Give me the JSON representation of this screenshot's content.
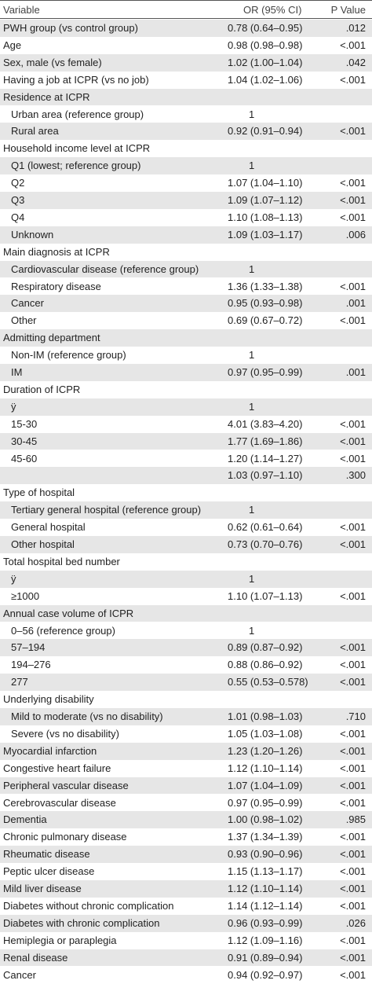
{
  "table": {
    "header": [
      "Variable",
      "OR (95% CI)",
      "P Value"
    ],
    "rows": [
      {
        "label": "PWH group (vs control group)",
        "or": "0.78 (0.64–0.95)",
        "p": ".012"
      },
      {
        "label": "Age",
        "or": "0.98 (0.98–0.98)",
        "p": "<.001"
      },
      {
        "label": "Sex, male (vs female)",
        "or": "1.02 (1.00–1.04)",
        "p": ".042"
      },
      {
        "label": "Having a job at ICPR (vs no job)",
        "or": "1.04 (1.02–1.06)",
        "p": "<.001"
      },
      {
        "label": "Residence at ICPR"
      },
      {
        "label": "Urban area (reference group)",
        "or": "1"
      },
      {
        "label": "Rural area",
        "or": "0.92 (0.91–0.94)",
        "p": "<.001"
      },
      {
        "label": "Household income level at ICPR"
      },
      {
        "label": "Q1 (lowest; reference group)",
        "or": "1"
      },
      {
        "label": "Q2",
        "or": "1.07 (1.04–1.10)",
        "p": "<.001"
      },
      {
        "label": "Q3",
        "or": "1.09 (1.07–1.12)",
        "p": "<.001"
      },
      {
        "label": "Q4",
        "or": "1.10 (1.08–1.13)",
        "p": "<.001"
      },
      {
        "label": "Unknown",
        "or": "1.09 (1.03–1.17)",
        "p": ".006"
      },
      {
        "label": "Main diagnosis at ICPR"
      },
      {
        "label": "Cardiovascular disease (reference group)",
        "or": "1"
      },
      {
        "label": "Respiratory disease",
        "or": "1.36 (1.33–1.38)",
        "p": "<.001"
      },
      {
        "label": "Cancer",
        "or": "0.95 (0.93–0.98)",
        "p": ".001"
      },
      {
        "label": "Other",
        "or": "0.69 (0.67–0.72)",
        "p": "<.001"
      },
      {
        "label": "Admitting department"
      },
      {
        "label": "Non-IM (reference group)",
        "or": "1"
      },
      {
        "label": "IM",
        "or": "0.97 (0.95–0.99)",
        "p": ".001"
      },
      {
        "label": "Duration of ICPR"
      },
      {
        "label": "ÿ",
        "or": "1"
      },
      {
        "label": "15-30",
        "or": "4.01 (3.83–4.20)",
        "p": "<.001"
      },
      {
        "label": "30-45",
        "or": "1.77 (1.69–1.86)",
        "p": "<.001"
      },
      {
        "label": "45-60",
        "or": "1.20 (1.14–1.27)",
        "p": "<.001"
      },
      {
        "or": "1.03 (0.97–1.10)",
        "p": ".300"
      },
      {
        "label": "Type of hospital"
      },
      {
        "label": "Tertiary general hospital (reference group)",
        "or": "1"
      },
      {
        "label": "General hospital",
        "or": "0.62 (0.61–0.64)",
        "p": "<.001"
      },
      {
        "label": "Other hospital",
        "or": "0.73 (0.70–0.76)",
        "p": "<.001"
      },
      {
        "label": "Total hospital bed number"
      },
      {
        "label": "ÿ",
        "or": "1"
      },
      {
        "label": "≥1000",
        "or": "1.10 (1.07–1.13)",
        "p": "<.001"
      },
      {
        "label": "Annual case volume of ICPR"
      },
      {
        "label": "0–56 (reference group)",
        "or": "1"
      },
      {
        "label": "57–194",
        "or": "0.89 (0.87–0.92)",
        "p": "<.001"
      },
      {
        "label": "194–276",
        "or": "0.88 (0.86–0.92)",
        "p": "<.001"
      },
      {
        "label": "277",
        "or": "0.55 (0.53–0.578)",
        "p": "<.001"
      },
      {
        "label": "Underlying disability"
      },
      {
        "label": "Mild to moderate (vs no disability)",
        "or": "1.01 (0.98–1.03)",
        "p": ".710"
      },
      {
        "label": "Severe (vs no disability)",
        "or": "1.05 (1.03–1.08)",
        "p": "<.001"
      },
      {
        "label": "Myocardial infarction",
        "or": "1.23 (1.20–1.26)",
        "p": "<.001"
      },
      {
        "label": "Congestive heart failure",
        "or": "1.12 (1.10–1.14)",
        "p": "<.001"
      },
      {
        "label": "Peripheral vascular disease",
        "or": "1.07 (1.04–1.09)",
        "p": "<.001"
      },
      {
        "label": "Cerebrovascular disease",
        "or": "0.97 (0.95–0.99)",
        "p": "<.001"
      },
      {
        "label": "Dementia",
        "or": "1.00 (0.98–1.02)",
        "p": ".985"
      },
      {
        "label": "Chronic pulmonary disease",
        "or": "1.37 (1.34–1.39)",
        "p": "<.001"
      },
      {
        "label": "Rheumatic disease",
        "or": "0.93 (0.90–0.96)",
        "p": "<.001"
      },
      {
        "label": "Peptic ulcer disease",
        "or": "1.15 (1.13–1.17)",
        "p": "<.001"
      },
      {
        "label": "Mild liver disease",
        "or": "1.12 (1.10–1.14)",
        "p": "<.001"
      },
      {
        "label": "Diabetes without chronic complication",
        "or": "1.14 (1.12–1.14)",
        "p": "<.001"
      },
      {
        "label": "Diabetes with chronic complication",
        "or": "0.96 (0.93–0.99)",
        "p": ".026"
      },
      {
        "label": "Hemiplegia or paraplegia",
        "or": "1.12 (1.09–1.16)",
        "p": "<.001"
      },
      {
        "label": "Renal disease",
        "or": "0.91 (0.89–0.94)",
        "p": "<.001"
      },
      {
        "label": "Cancer",
        "or": "0.94 (0.92–0.97)",
        "p": "<.001"
      }
    ]
  }
}
